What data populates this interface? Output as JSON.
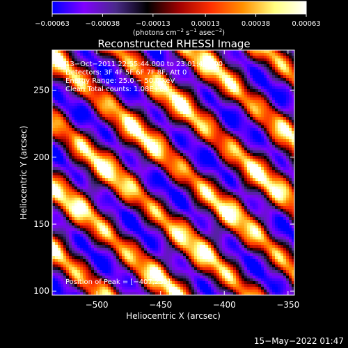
{
  "chart_data": {
    "type": "heatmap",
    "title": "Reconstructed RHESSI Image",
    "xlabel": "Heliocentric X (arcsec)",
    "ylabel": "Heliocentric Y (arcsec)",
    "xlim": [
      -535,
      -345
    ],
    "ylim": [
      97,
      280
    ],
    "x_ticks": [
      -500,
      -450,
      -400,
      -350
    ],
    "x_tick_labels": [
      "−500",
      "−450",
      "−400",
      "−350"
    ],
    "y_ticks": [
      100,
      150,
      200,
      250
    ],
    "y_tick_labels": [
      "100",
      "150",
      "200",
      "250"
    ],
    "colorbar": {
      "min": -0.00063,
      "max": 0.00063,
      "ticks": [
        -0.00063,
        -0.00038,
        -0.00013,
        0.00013,
        0.00038,
        0.00063
      ],
      "tick_labels": [
        "−0.00063",
        "−0.00038",
        "−0.00013",
        "0.00013",
        "0.00038",
        "0.00063"
      ],
      "unit_parts": [
        "(photons cm",
        "−2",
        " s",
        "−1",
        " asec",
        "−2",
        ")"
      ],
      "colors": [
        "#0000ff",
        "#8000ff",
        "#4a2a8a",
        "#000000",
        "#a00000",
        "#ff3000",
        "#ff9000",
        "#ffff80",
        "#ffffff"
      ]
    },
    "annotations": [
      "13−Oct−2011 22:55:44.000 to 23:01:44.000",
      "Detectors: 3F 4F 5F 6F 7F 8F, Att 0",
      "Energy Range: 25.0 − 50.0 keV",
      "Clean     Total counts: 1.08E+04"
    ],
    "peak_label": "Position of Peak = [−407,250]",
    "peak": [
      -407,
      250
    ],
    "footer_date": "15−May−2022 01:47"
  }
}
